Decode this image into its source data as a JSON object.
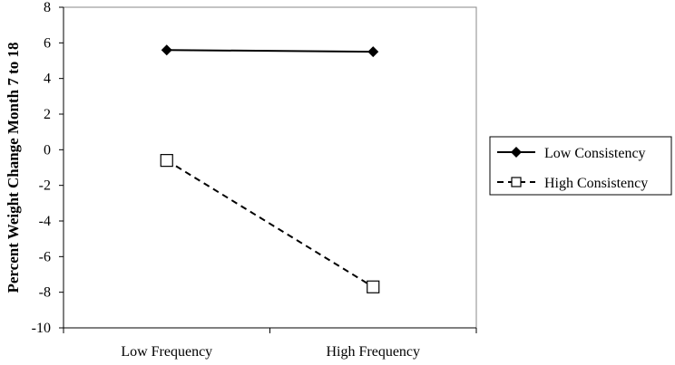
{
  "chart_data": {
    "type": "line",
    "categories": [
      "Low Frequency",
      "High Frequency"
    ],
    "series": [
      {
        "name": "Low Consistency",
        "values": [
          5.6,
          5.5
        ],
        "color": "#000000",
        "line_style": "solid",
        "marker": "filled-diamond"
      },
      {
        "name": "High Consistency",
        "values": [
          -0.6,
          -7.7
        ],
        "color": "#000000",
        "line_style": "dashed",
        "marker": "open-square"
      }
    ],
    "title": "",
    "xlabel": "",
    "ylabel": "Percent Weight Change Month 7 to 18",
    "ylim": [
      -10,
      8
    ],
    "yticks": [
      -10,
      -8,
      -6,
      -4,
      -2,
      0,
      2,
      4,
      6,
      8
    ],
    "ytick_labels": [
      "-10",
      "-8",
      "-6",
      "-4",
      "-2",
      "0",
      "2",
      "4",
      "6",
      "8"
    ],
    "grid": false,
    "legend_position": "right"
  }
}
